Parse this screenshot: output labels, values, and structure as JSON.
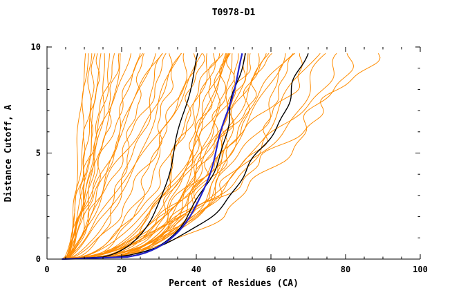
{
  "title": "T0978-D1",
  "chart_data": {
    "type": "line",
    "title": "T0978-D1",
    "xlabel": "Percent of Residues (CA)",
    "ylabel": "Distance Cutoff, A",
    "xlim": [
      0,
      100
    ],
    "ylim": [
      0,
      10
    ],
    "x_major_ticks": [
      0,
      20,
      40,
      60,
      80,
      100
    ],
    "x_minor_step": 5,
    "y_major_ticks": [
      0,
      5,
      10
    ],
    "y_minor_step": 1,
    "grid": "off",
    "legend": "none",
    "curve_top_y": 9.7,
    "curve_model": "x(y) = x0 + (xf - x0) * (y / 9.7) ^ p",
    "colors": {
      "models": "#ff8c00",
      "reference": "#000000",
      "highlight": "#2222cc"
    },
    "series_groups": [
      {
        "name": "models",
        "color": "#ff8c00",
        "width": 1,
        "wiggle": 1,
        "curves": [
          [
            10,
            0.45,
            4
          ],
          [
            11,
            0.6,
            5
          ],
          [
            12,
            0.3,
            4
          ],
          [
            13,
            0.75,
            5
          ],
          [
            14,
            0.5,
            4
          ],
          [
            15,
            0.9,
            6
          ],
          [
            16,
            0.4,
            4
          ],
          [
            17,
            0.65,
            5
          ],
          [
            18,
            1.1,
            6
          ],
          [
            19,
            0.5,
            4
          ],
          [
            20,
            0.8,
            5
          ],
          [
            22,
            1.3,
            6
          ],
          [
            24,
            0.6,
            4
          ],
          [
            25,
            1.0,
            5
          ],
          [
            26,
            0.35,
            4
          ],
          [
            28,
            0.8,
            5
          ],
          [
            30,
            1.2,
            6
          ],
          [
            31,
            0.5,
            4
          ],
          [
            33,
            0.9,
            5
          ],
          [
            34,
            0.3,
            4
          ],
          [
            36,
            0.7,
            5
          ],
          [
            37,
            1.1,
            6
          ],
          [
            38,
            0.4,
            4
          ],
          [
            40,
            0.6,
            5
          ],
          [
            41,
            0.28,
            4
          ],
          [
            42,
            0.85,
            5
          ],
          [
            43,
            0.35,
            4
          ],
          [
            44,
            0.22,
            4
          ],
          [
            45,
            0.5,
            5
          ],
          [
            46,
            0.3,
            4
          ],
          [
            47,
            0.26,
            4
          ],
          [
            48,
            0.4,
            5
          ],
          [
            48,
            0.22,
            4
          ],
          [
            49,
            0.3,
            4
          ],
          [
            50,
            0.24,
            4
          ],
          [
            50,
            0.5,
            5
          ],
          [
            51,
            0.28,
            4
          ],
          [
            52,
            0.35,
            5
          ],
          [
            53,
            0.25,
            4
          ],
          [
            54,
            0.3,
            4
          ],
          [
            55,
            0.45,
            5
          ],
          [
            56,
            0.27,
            4
          ],
          [
            57,
            0.35,
            5
          ],
          [
            58,
            0.3,
            4
          ],
          [
            60,
            0.45,
            5
          ],
          [
            62,
            0.33,
            4
          ],
          [
            64,
            0.5,
            5
          ],
          [
            66,
            0.38,
            4
          ],
          [
            68,
            0.55,
            5
          ],
          [
            70,
            0.4,
            4
          ],
          [
            73,
            0.5,
            5
          ],
          [
            76,
            0.45,
            4
          ],
          [
            80,
            0.55,
            5
          ],
          [
            82,
            0.4,
            4
          ],
          [
            88,
            0.6,
            5
          ]
        ]
      },
      {
        "name": "reference-curves",
        "color": "#000000",
        "width": 1.4,
        "wiggle": 0.5,
        "curves": [
          [
            40,
            0.26,
            4
          ],
          [
            53,
            0.23,
            4
          ],
          [
            70,
            0.33,
            4
          ]
        ]
      },
      {
        "name": "highlight-curve",
        "color": "#2222cc",
        "width": 2.2,
        "wiggle": 0.35,
        "curves": [
          [
            52,
            0.22,
            4
          ]
        ]
      }
    ]
  }
}
